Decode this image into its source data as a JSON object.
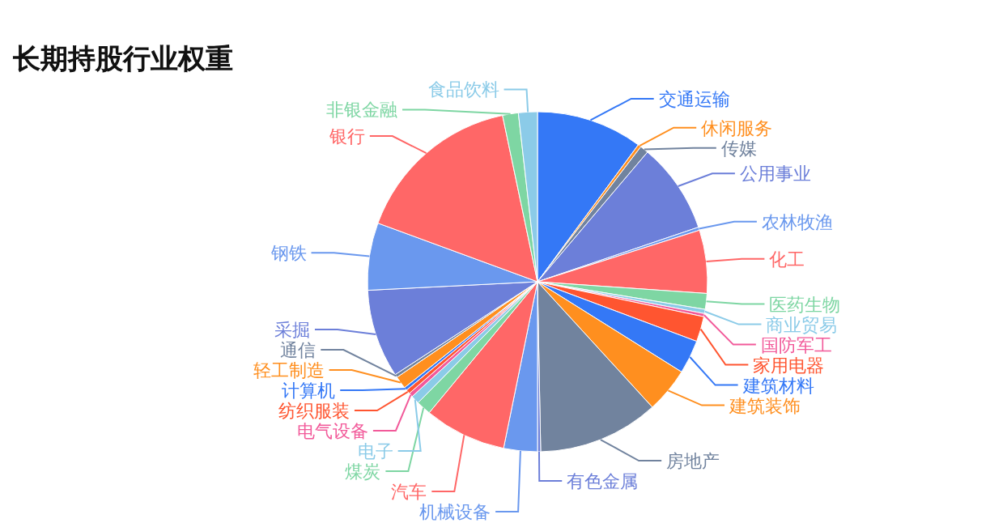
{
  "chart_data": {
    "type": "pie",
    "title": "长期持股行业权重",
    "categories": [
      "交通运输",
      "休闲服务",
      "传媒",
      "公用事业",
      "农林牧渔",
      "化工",
      "医药生物",
      "商业贸易",
      "国防军工",
      "家用电器",
      "建筑材料",
      "建筑装饰",
      "房地产",
      "有色金属",
      "机械设备",
      "汽车",
      "煤炭",
      "电子",
      "电气设备",
      "纺织服装",
      "计算机",
      "轻工制造",
      "通信",
      "采掘",
      "钢铁",
      "银行",
      "非银金融",
      "食品饮料"
    ],
    "values": [
      10.1,
      0.3,
      0.8,
      8.6,
      0.3,
      6,
      1.5,
      0.4,
      0.3,
      2.4,
      3.2,
      4.3,
      11.5,
      0.3,
      3.2,
      7.8,
      1.4,
      0.8,
      0.4,
      0.4,
      0.3,
      1.2,
      0.3,
      8.4,
      6.4,
      16.1,
      1.5,
      1.8
    ],
    "colors": [
      "#3478f6",
      "#ff8f1f",
      "#71839e",
      "#6c7fd9",
      "#6a98ee",
      "#ff6767",
      "#7ed6a3",
      "#8bcbe8",
      "#f25a9a",
      "#ff5530",
      "#3478f6",
      "#ff8f1f",
      "#71839e",
      "#6c7fd9",
      "#6a98ee",
      "#ff6767",
      "#7ed6a3",
      "#8bcbe8",
      "#f25a9a",
      "#ff5530",
      "#3478f6",
      "#ff8f1f",
      "#71839e",
      "#6c7fd9",
      "#6a98ee",
      "#ff6767",
      "#7ed6a3",
      "#8bcbe8"
    ],
    "data_labels": false
  }
}
